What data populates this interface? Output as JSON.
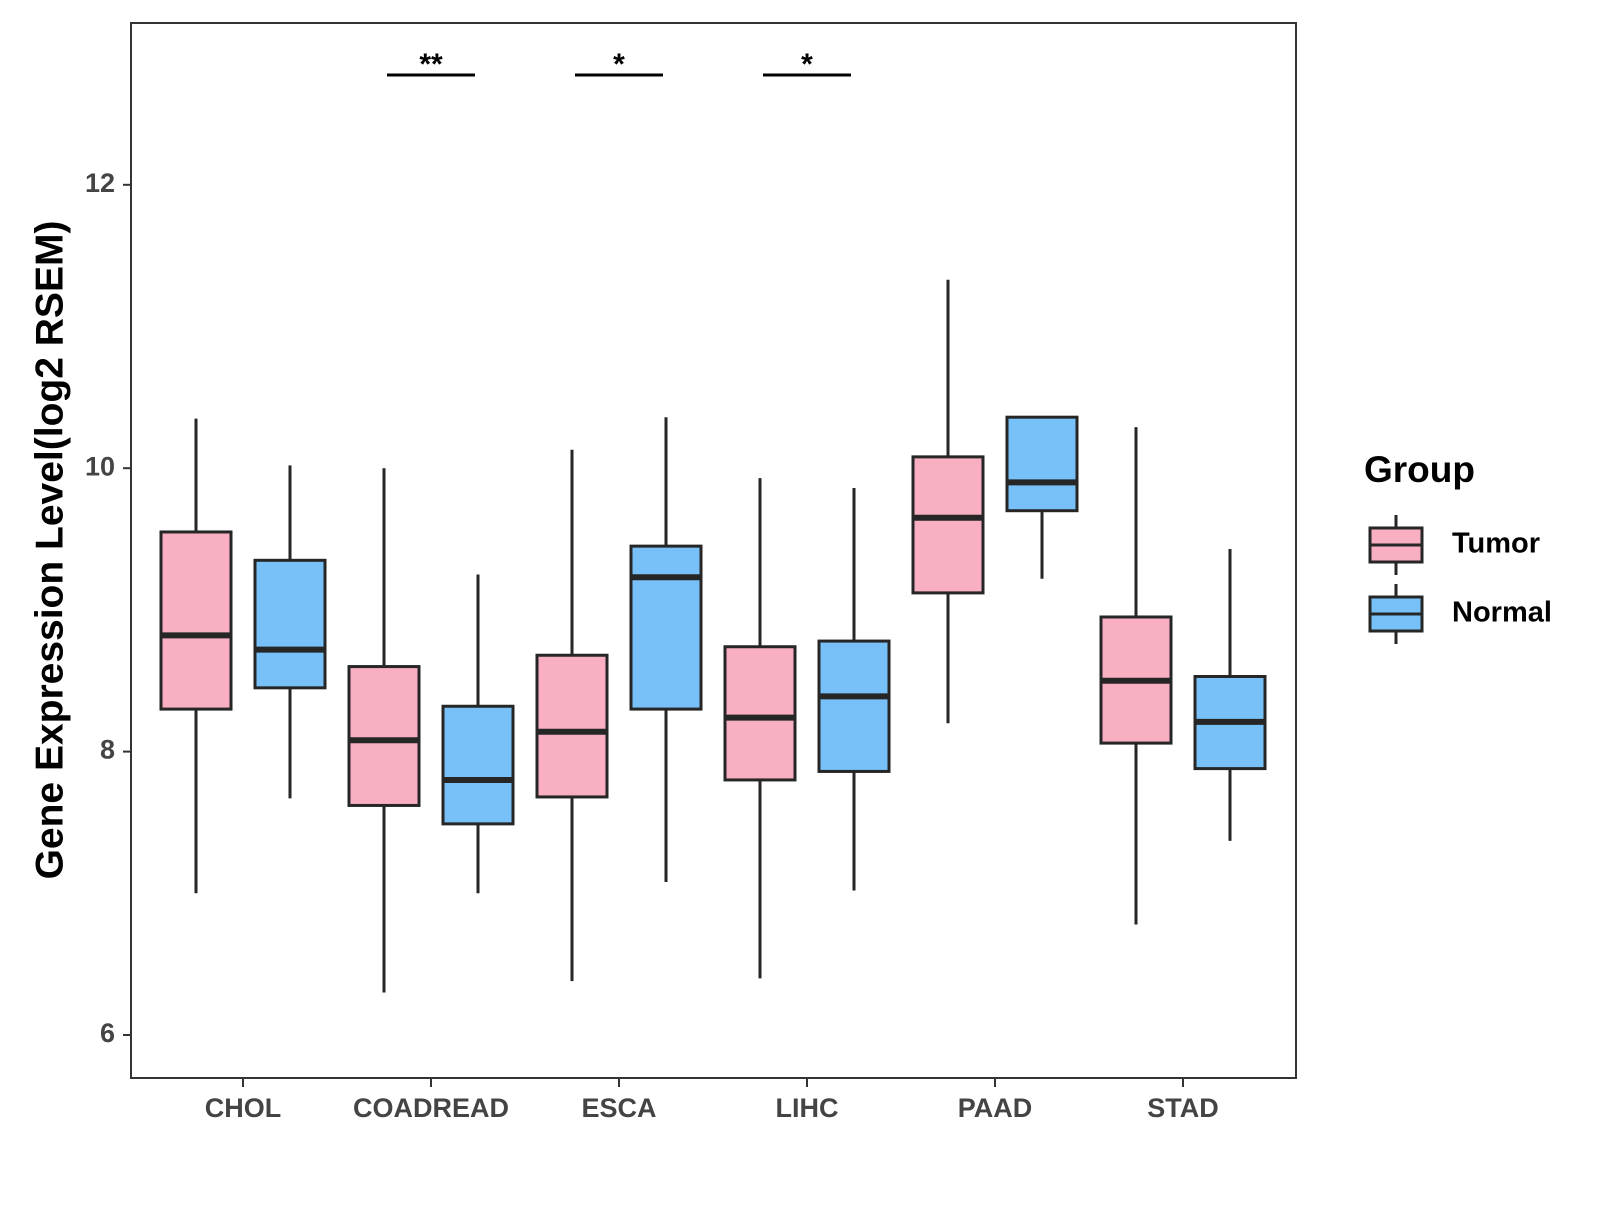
{
  "chart_data": {
    "type": "box",
    "ylabel": "Gene Expression Level(log2 RSEM)",
    "xlabel": "",
    "ylim": [
      5.7,
      13.1
    ],
    "yticks": [
      6,
      8,
      10,
      12
    ],
    "categories": [
      "CHOL",
      "COADREAD",
      "ESCA",
      "LIHC",
      "PAAD",
      "STAD"
    ],
    "grid": false,
    "legend": {
      "title": "Group",
      "position": "right",
      "entries": [
        "Tumor",
        "Normal"
      ]
    },
    "colors": {
      "Tumor": "#F9AFC2",
      "Normal": "#78C1F8",
      "outline": "#262626"
    },
    "series": [
      {
        "name": "Tumor",
        "boxes": [
          {
            "category": "CHOL",
            "whisker_low": 7.0,
            "q1": 8.3,
            "median": 8.82,
            "q3": 9.55,
            "whisker_high": 10.35
          },
          {
            "category": "COADREAD",
            "whisker_low": 6.3,
            "q1": 7.62,
            "median": 8.08,
            "q3": 8.6,
            "whisker_high": 10.0
          },
          {
            "category": "ESCA",
            "whisker_low": 6.38,
            "q1": 7.68,
            "median": 8.14,
            "q3": 8.68,
            "whisker_high": 10.13
          },
          {
            "category": "LIHC",
            "whisker_low": 6.4,
            "q1": 7.8,
            "median": 8.24,
            "q3": 8.74,
            "whisker_high": 9.93
          },
          {
            "category": "PAAD",
            "whisker_low": 8.2,
            "q1": 9.12,
            "median": 9.65,
            "q3": 10.08,
            "whisker_high": 11.33
          },
          {
            "category": "STAD",
            "whisker_low": 6.78,
            "q1": 8.06,
            "median": 8.5,
            "q3": 8.95,
            "whisker_high": 10.29
          }
        ]
      },
      {
        "name": "Normal",
        "boxes": [
          {
            "category": "CHOL",
            "whisker_low": 7.67,
            "q1": 8.45,
            "median": 8.72,
            "q3": 9.35,
            "whisker_high": 10.02
          },
          {
            "category": "COADREAD",
            "whisker_low": 7.0,
            "q1": 7.49,
            "median": 7.8,
            "q3": 8.32,
            "whisker_high": 9.25
          },
          {
            "category": "ESCA",
            "whisker_low": 7.08,
            "q1": 8.3,
            "median": 9.23,
            "q3": 9.45,
            "whisker_high": 10.36
          },
          {
            "category": "LIHC",
            "whisker_low": 7.02,
            "q1": 7.86,
            "median": 8.39,
            "q3": 8.78,
            "whisker_high": 9.86
          },
          {
            "category": "PAAD",
            "whisker_low": 9.22,
            "q1": 9.7,
            "median": 9.9,
            "q3": 10.36,
            "whisker_high": 10.36
          },
          {
            "category": "STAD",
            "whisker_low": 7.37,
            "q1": 7.88,
            "median": 8.21,
            "q3": 8.53,
            "whisker_high": 9.43
          }
        ]
      }
    ],
    "annotations": [
      {
        "category": "COADREAD",
        "text": "**"
      },
      {
        "category": "ESCA",
        "text": "*"
      },
      {
        "category": "LIHC",
        "text": "*"
      }
    ]
  }
}
